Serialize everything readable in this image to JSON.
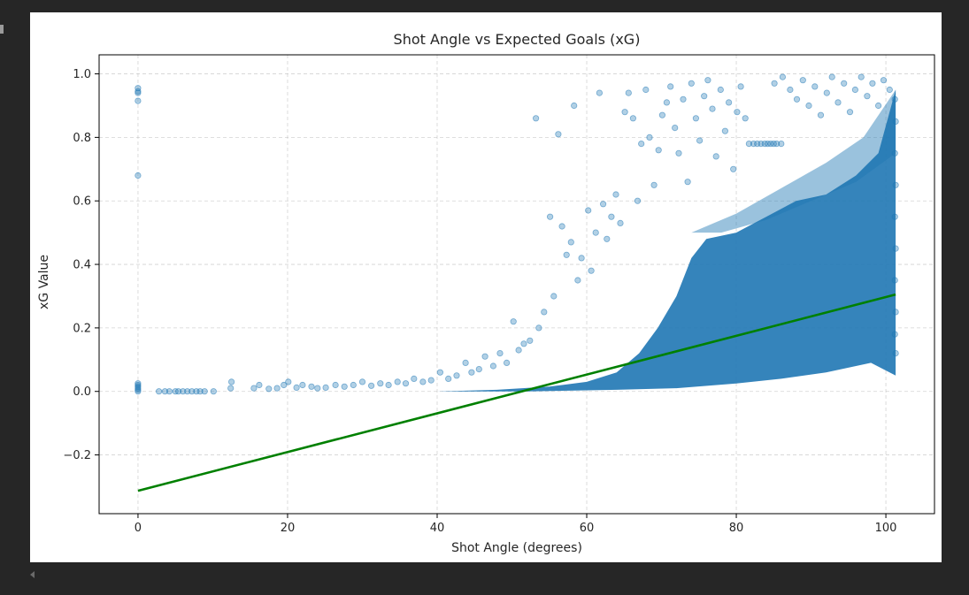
{
  "output": {
    "stdout_text": ""
  },
  "chart_data": {
    "type": "scatter",
    "title": "Shot Angle vs Expected Goals (xG)",
    "xlabel": "Shot Angle (degrees)",
    "ylabel": "xG Value",
    "xlim": [
      -5.2,
      106.5
    ],
    "ylim": [
      -0.385,
      1.06
    ],
    "x_ticks": [
      0,
      20,
      40,
      60,
      80,
      100
    ],
    "y_ticks": [
      -0.2,
      0.0,
      0.2,
      0.4,
      0.6,
      0.8,
      1.0
    ],
    "x_tick_labels": [
      "0",
      "20",
      "40",
      "60",
      "80",
      "100"
    ],
    "y_tick_labels": [
      "−0.2",
      "0.0",
      "0.2",
      "0.4",
      "0.6",
      "0.8",
      "1.0"
    ],
    "grid": true,
    "legend": "none",
    "series": [
      {
        "kind": "scatter",
        "color": "#1f77b4",
        "opacity": 0.35,
        "points": [
          [
            0,
            0.955
          ],
          [
            0,
            0.945
          ],
          [
            0,
            0.94
          ],
          [
            0,
            0.915
          ],
          [
            0,
            0.68
          ],
          [
            0,
            0.02
          ],
          [
            0,
            0.025
          ],
          [
            0,
            0.015
          ],
          [
            0,
            0.01
          ],
          [
            0,
            0.005
          ],
          [
            0,
            0.0
          ],
          [
            2.8,
            0.0
          ],
          [
            3.6,
            0.0
          ],
          [
            4.2,
            0.0
          ],
          [
            5.0,
            0.0
          ],
          [
            5.4,
            0.0
          ],
          [
            6.0,
            0.0
          ],
          [
            6.6,
            0.0
          ],
          [
            7.2,
            0.0
          ],
          [
            7.8,
            0.0
          ],
          [
            8.3,
            0.0
          ],
          [
            8.9,
            0.0
          ],
          [
            10.1,
            0.0
          ],
          [
            12.4,
            0.01
          ],
          [
            12.5,
            0.03
          ],
          [
            15.5,
            0.01
          ],
          [
            16.2,
            0.02
          ],
          [
            17.5,
            0.008
          ],
          [
            18.6,
            0.01
          ],
          [
            19.5,
            0.02
          ],
          [
            20.1,
            0.03
          ],
          [
            21.2,
            0.012
          ],
          [
            22.0,
            0.02
          ],
          [
            23.2,
            0.015
          ],
          [
            24.0,
            0.01
          ],
          [
            25.1,
            0.012
          ],
          [
            26.4,
            0.02
          ],
          [
            27.6,
            0.015
          ],
          [
            28.8,
            0.02
          ],
          [
            30.0,
            0.03
          ],
          [
            31.2,
            0.018
          ],
          [
            32.4,
            0.025
          ],
          [
            33.5,
            0.02
          ],
          [
            34.7,
            0.03
          ],
          [
            35.8,
            0.025
          ],
          [
            36.9,
            0.04
          ],
          [
            38.1,
            0.03
          ],
          [
            39.2,
            0.035
          ],
          [
            40.4,
            0.06
          ],
          [
            41.5,
            0.04
          ],
          [
            42.6,
            0.05
          ],
          [
            43.8,
            0.09
          ],
          [
            44.6,
            0.06
          ],
          [
            45.6,
            0.07
          ],
          [
            46.4,
            0.11
          ],
          [
            47.5,
            0.08
          ],
          [
            48.4,
            0.12
          ],
          [
            49.3,
            0.09
          ],
          [
            50.2,
            0.22
          ],
          [
            50.9,
            0.13
          ],
          [
            51.6,
            0.15
          ],
          [
            52.4,
            0.16
          ],
          [
            53.2,
            0.86
          ],
          [
            53.6,
            0.2
          ],
          [
            54.3,
            0.25
          ],
          [
            55.1,
            0.55
          ],
          [
            55.6,
            0.3
          ],
          [
            56.2,
            0.81
          ],
          [
            56.7,
            0.52
          ],
          [
            57.3,
            0.43
          ],
          [
            57.9,
            0.47
          ],
          [
            58.3,
            0.9
          ],
          [
            58.8,
            0.35
          ],
          [
            59.3,
            0.42
          ],
          [
            60.2,
            0.57
          ],
          [
            60.6,
            0.38
          ],
          [
            61.2,
            0.5
          ],
          [
            61.7,
            0.94
          ],
          [
            62.2,
            0.59
          ],
          [
            62.7,
            0.48
          ],
          [
            63.3,
            0.55
          ],
          [
            63.9,
            0.62
          ],
          [
            64.5,
            0.53
          ],
          [
            65.1,
            0.88
          ],
          [
            65.6,
            0.94
          ],
          [
            66.2,
            0.86
          ],
          [
            66.8,
            0.6
          ],
          [
            67.3,
            0.78
          ],
          [
            67.9,
            0.95
          ],
          [
            68.4,
            0.8
          ],
          [
            69.0,
            0.65
          ],
          [
            69.6,
            0.76
          ],
          [
            70.1,
            0.87
          ],
          [
            70.7,
            0.91
          ],
          [
            71.2,
            0.96
          ],
          [
            71.8,
            0.83
          ],
          [
            72.3,
            0.75
          ],
          [
            72.9,
            0.92
          ],
          [
            73.5,
            0.66
          ],
          [
            74.0,
            0.97
          ],
          [
            74.6,
            0.86
          ],
          [
            75.1,
            0.79
          ],
          [
            75.7,
            0.93
          ],
          [
            76.2,
            0.98
          ],
          [
            76.8,
            0.89
          ],
          [
            77.3,
            0.74
          ],
          [
            77.9,
            0.95
          ],
          [
            78.5,
            0.82
          ],
          [
            79.0,
            0.91
          ],
          [
            79.6,
            0.7
          ],
          [
            80.1,
            0.88
          ],
          [
            80.6,
            0.96
          ],
          [
            81.2,
            0.86
          ],
          [
            81.7,
            0.78
          ],
          [
            82.3,
            0.78
          ],
          [
            82.8,
            0.78
          ],
          [
            83.3,
            0.78
          ],
          [
            83.8,
            0.78
          ],
          [
            84.2,
            0.78
          ],
          [
            84.6,
            0.78
          ],
          [
            85.0,
            0.78
          ],
          [
            85.4,
            0.78
          ],
          [
            86.0,
            0.78
          ],
          [
            86.2,
            0.99
          ],
          [
            85.1,
            0.97
          ],
          [
            87.2,
            0.95
          ],
          [
            88.1,
            0.92
          ],
          [
            88.9,
            0.98
          ],
          [
            89.7,
            0.9
          ],
          [
            90.5,
            0.96
          ],
          [
            91.3,
            0.87
          ],
          [
            92.1,
            0.94
          ],
          [
            92.8,
            0.99
          ],
          [
            93.6,
            0.91
          ],
          [
            94.4,
            0.97
          ],
          [
            95.2,
            0.88
          ],
          [
            95.9,
            0.95
          ],
          [
            96.7,
            0.99
          ],
          [
            97.5,
            0.93
          ],
          [
            98.2,
            0.97
          ],
          [
            99.0,
            0.9
          ],
          [
            99.7,
            0.98
          ],
          [
            100.5,
            0.95
          ],
          [
            101.2,
            0.92
          ],
          [
            101.3,
            0.85
          ],
          [
            101.2,
            0.75
          ],
          [
            101.3,
            0.65
          ],
          [
            101.2,
            0.55
          ],
          [
            101.3,
            0.45
          ],
          [
            101.2,
            0.35
          ],
          [
            101.3,
            0.25
          ],
          [
            101.2,
            0.18
          ],
          [
            101.3,
            0.12
          ]
        ]
      },
      {
        "kind": "line",
        "color": "#008000",
        "points": [
          [
            0,
            -0.313
          ],
          [
            101.3,
            0.305
          ]
        ]
      }
    ]
  }
}
